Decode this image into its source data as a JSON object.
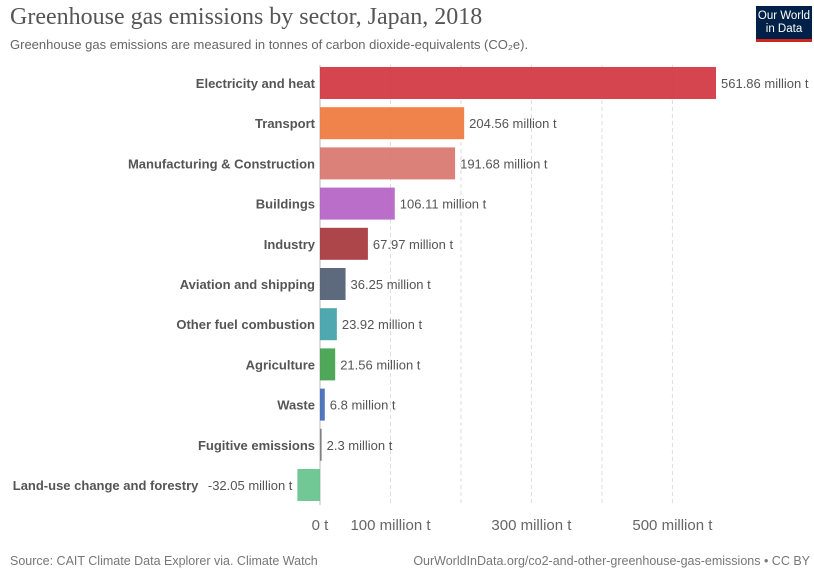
{
  "header": {
    "title": "Greenhouse gas emissions by sector, Japan, 2018",
    "subtitle": "Greenhouse gas emissions are measured in tonnes of carbon dioxide-equivalents (CO₂e).",
    "logo_line1": "Our World",
    "logo_line2": "in Data"
  },
  "footer": {
    "source": "Source: CAIT Climate Data Explorer via. Climate Watch",
    "url": "OurWorldInData.org/co2-and-other-greenhouse-gas-emissions • CC BY"
  },
  "chart_data": {
    "type": "bar",
    "orientation": "horizontal",
    "title": "Greenhouse gas emissions by sector, Japan, 2018",
    "subtitle": "Greenhouse gas emissions are measured in tonnes of carbon dioxide-equivalents (CO₂e).",
    "xlim": [
      -32.05,
      561.86
    ],
    "grid": true,
    "unit": "million t",
    "x_ticks": [
      {
        "value": 0,
        "label": "0 t"
      },
      {
        "value": 100,
        "label": "100 million t"
      },
      {
        "value": 200,
        "label": ""
      },
      {
        "value": 300,
        "label": "300 million t"
      },
      {
        "value": 400,
        "label": ""
      },
      {
        "value": 500,
        "label": "500 million t"
      }
    ],
    "categories": [
      "Electricity and heat",
      "Transport",
      "Manufacturing & Construction",
      "Buildings",
      "Industry",
      "Aviation and shipping",
      "Other fuel combustion",
      "Agriculture",
      "Waste",
      "Fugitive emissions",
      "Land-use change and forestry"
    ],
    "values": [
      561.86,
      204.56,
      191.68,
      106.11,
      67.97,
      36.25,
      23.92,
      21.56,
      6.8,
      2.3,
      -32.05
    ],
    "value_labels": [
      "561.86 million t",
      "204.56 million t",
      "191.68 million t",
      "106.11 million t",
      "67.97 million t",
      "36.25 million t",
      "23.92 million t",
      "21.56 million t",
      "6.8 million t",
      "2.3 million t",
      "-32.05 million t"
    ],
    "colors": [
      "#d0313d",
      "#ee7537",
      "#d8726b",
      "#b35ec3",
      "#a43237",
      "#4b5a70",
      "#3c9fa6",
      "#3c9e48",
      "#3e66b7",
      "#777777",
      "#62c28a"
    ]
  }
}
